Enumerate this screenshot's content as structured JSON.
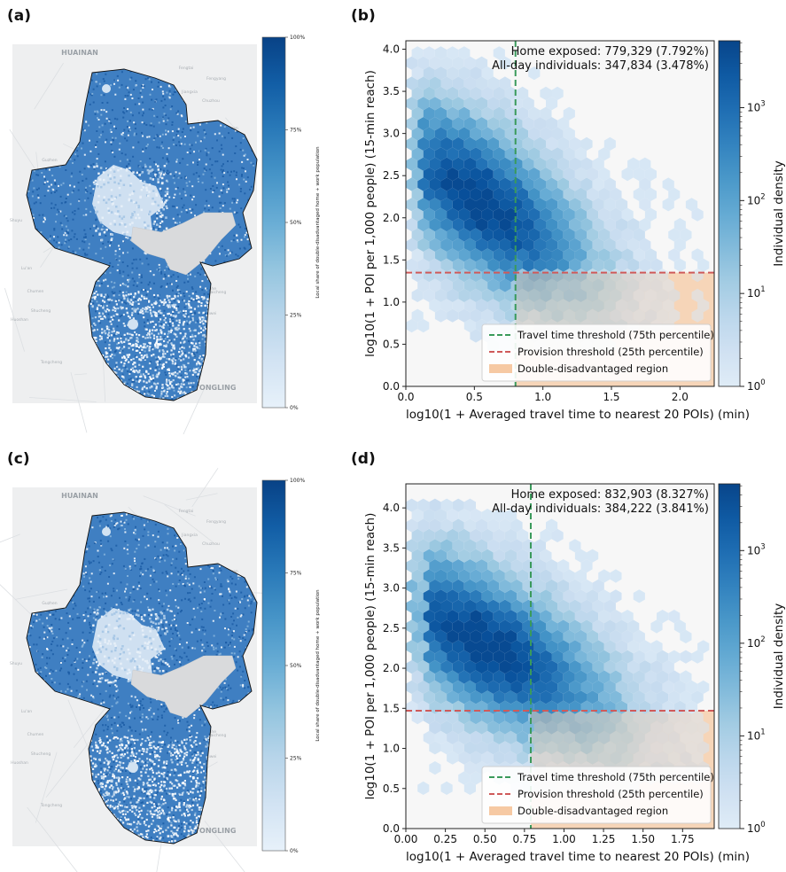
{
  "panels": {
    "a": "(a)",
    "b": "(b)",
    "c": "(c)",
    "d": "(d)"
  },
  "maps": [
    {
      "id": "a",
      "place_labels": [
        "HUAINAN",
        "TONGLING",
        "Fengtai",
        "Fengyang",
        "Dingyuan",
        "Shucheng",
        "Jiangxia",
        "Zhangqiao",
        "Wuwei",
        "Lu'an",
        "Huoshan",
        "Sanhe",
        "Guzhen",
        "Hanshan",
        "Kaicheng",
        "Chumen",
        "Dongcheng",
        "Xiaoxi",
        "Tongcheng",
        "Shuyu",
        "Chuzhou"
      ],
      "colorbar_title": "Local share of double-disadvantaged home + work population",
      "colorbar_ticks": [
        "100%",
        "75%",
        "50%",
        "25%",
        "0%"
      ]
    },
    {
      "id": "c",
      "place_labels": [
        "HUAINAN",
        "TONGLING",
        "Fengtai",
        "Fengyang",
        "Dingyuan",
        "Shucheng",
        "Jiangxia",
        "Zhangqiao",
        "Wuwei",
        "Lu'an",
        "Huoshan",
        "Sanhe",
        "Guzhen",
        "Hanshan",
        "Kaicheng",
        "Chumen",
        "Dongcheng",
        "Xiaoxi",
        "Tongcheng",
        "Shuyu",
        "Chuzhou"
      ],
      "colorbar_title": "Local share of double-disadvantaged home + work population",
      "colorbar_ticks": [
        "100%",
        "75%",
        "50%",
        "25%",
        "0%"
      ]
    }
  ],
  "chart_data": [
    {
      "panel": "b",
      "type": "heatmap",
      "subtype": "hexbin",
      "xlabel": "log10(1 + Averaged travel time to nearest 20 POIs) (min)",
      "ylabel": "log10(1 + POI per 1,000 people) (15-min reach)",
      "xlim": [
        0.0,
        2.25
      ],
      "ylim": [
        0.0,
        4.1
      ],
      "xticks": [
        "0.0",
        "0.5",
        "1.0",
        "1.5",
        "2.0"
      ],
      "yticks": [
        "0.0",
        "0.5",
        "1.0",
        "1.5",
        "2.0",
        "2.5",
        "3.0",
        "3.5",
        "4.0"
      ],
      "travel_threshold_x": 0.8,
      "provision_threshold_y": 1.35,
      "annotation_lines": [
        "Home exposed: 779,329 (7.792%)",
        "All-day individuals: 347,834 (3.478%)"
      ],
      "legend": [
        "Travel time threshold (75th percentile)",
        "Provision threshold (25th percentile)",
        "Double-disadvantaged region"
      ],
      "legend_position": "lower-right",
      "colorbar_label": "Individual density",
      "colorbar_scale": "log",
      "colorbar_ticks": [
        "10^0",
        "10^1",
        "10^2",
        "10^3"
      ],
      "density_center": {
        "x": 0.55,
        "y": 2.0
      },
      "density_extent": {
        "x_max": 2.2,
        "y_max": 3.9
      },
      "cmap": "Blues",
      "highlight_color": "#f6c9a3"
    },
    {
      "panel": "d",
      "type": "heatmap",
      "subtype": "hexbin",
      "xlabel": "log10(1 + Averaged travel time to nearest 20 POIs) (min)",
      "ylabel": "log10(1 + POI per 1,000 people) (15-min reach)",
      "xlim": [
        0.0,
        1.95
      ],
      "ylim": [
        0.0,
        4.3
      ],
      "xticks": [
        "0.00",
        "0.25",
        "0.50",
        "0.75",
        "1.00",
        "1.25",
        "1.50",
        "1.75"
      ],
      "yticks": [
        "0.0",
        "0.5",
        "1.0",
        "1.5",
        "2.0",
        "2.5",
        "3.0",
        "3.5",
        "4.0"
      ],
      "travel_threshold_x": 0.79,
      "provision_threshold_y": 1.47,
      "annotation_lines": [
        "Home exposed: 832,903 (8.327%)",
        "All-day individuals: 384,222 (3.841%)"
      ],
      "legend": [
        "Travel time threshold (75th percentile)",
        "Provision threshold (25th percentile)",
        "Double-disadvantaged region"
      ],
      "legend_position": "lower-right",
      "colorbar_label": "Individual density",
      "colorbar_scale": "log",
      "colorbar_ticks": [
        "10^0",
        "10^1",
        "10^2",
        "10^3"
      ],
      "density_center": {
        "x": 0.5,
        "y": 2.1
      },
      "density_extent": {
        "x_max": 1.9,
        "y_max": 4.05
      },
      "cmap": "Blues",
      "highlight_color": "#f6c9a3"
    }
  ]
}
